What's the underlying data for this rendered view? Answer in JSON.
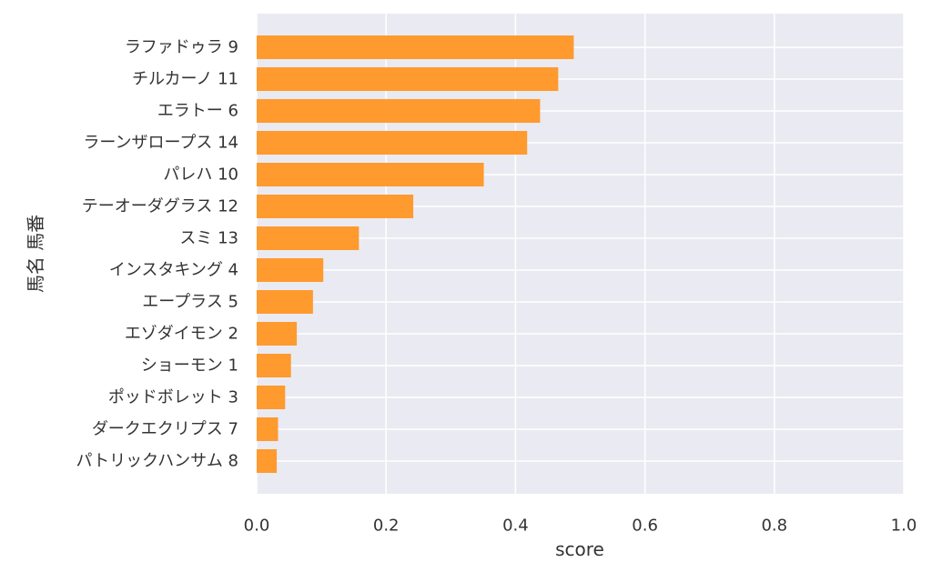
{
  "chart_data": {
    "type": "bar",
    "orientation": "horizontal",
    "categories": [
      "ラファドゥラ 9",
      "チルカーノ 11",
      "エラトー 6",
      "ラーンザロープス 14",
      "パレハ 10",
      "テーオーダグラス 12",
      "スミ 13",
      "インスタキング 4",
      "エープラス 5",
      "エゾダイモン 2",
      "ショーモン 1",
      "ポッドボレット 3",
      "ダークエクリプス 7",
      "パトリックハンサム 8"
    ],
    "values": [
      0.49,
      0.466,
      0.438,
      0.418,
      0.351,
      0.242,
      0.158,
      0.103,
      0.087,
      0.062,
      0.053,
      0.044,
      0.033,
      0.031
    ],
    "xlabel": "score",
    "ylabel": "馬名 馬番",
    "xlim": [
      0,
      1.0
    ],
    "xticks": [
      "0.0",
      "0.2",
      "0.4",
      "0.6",
      "0.8",
      "1.0"
    ],
    "grid": true,
    "colors": {
      "bar": "#ff9a2e",
      "plot_background": "#eaeaf2",
      "grid": "#ffffff",
      "text": "#333333"
    }
  }
}
